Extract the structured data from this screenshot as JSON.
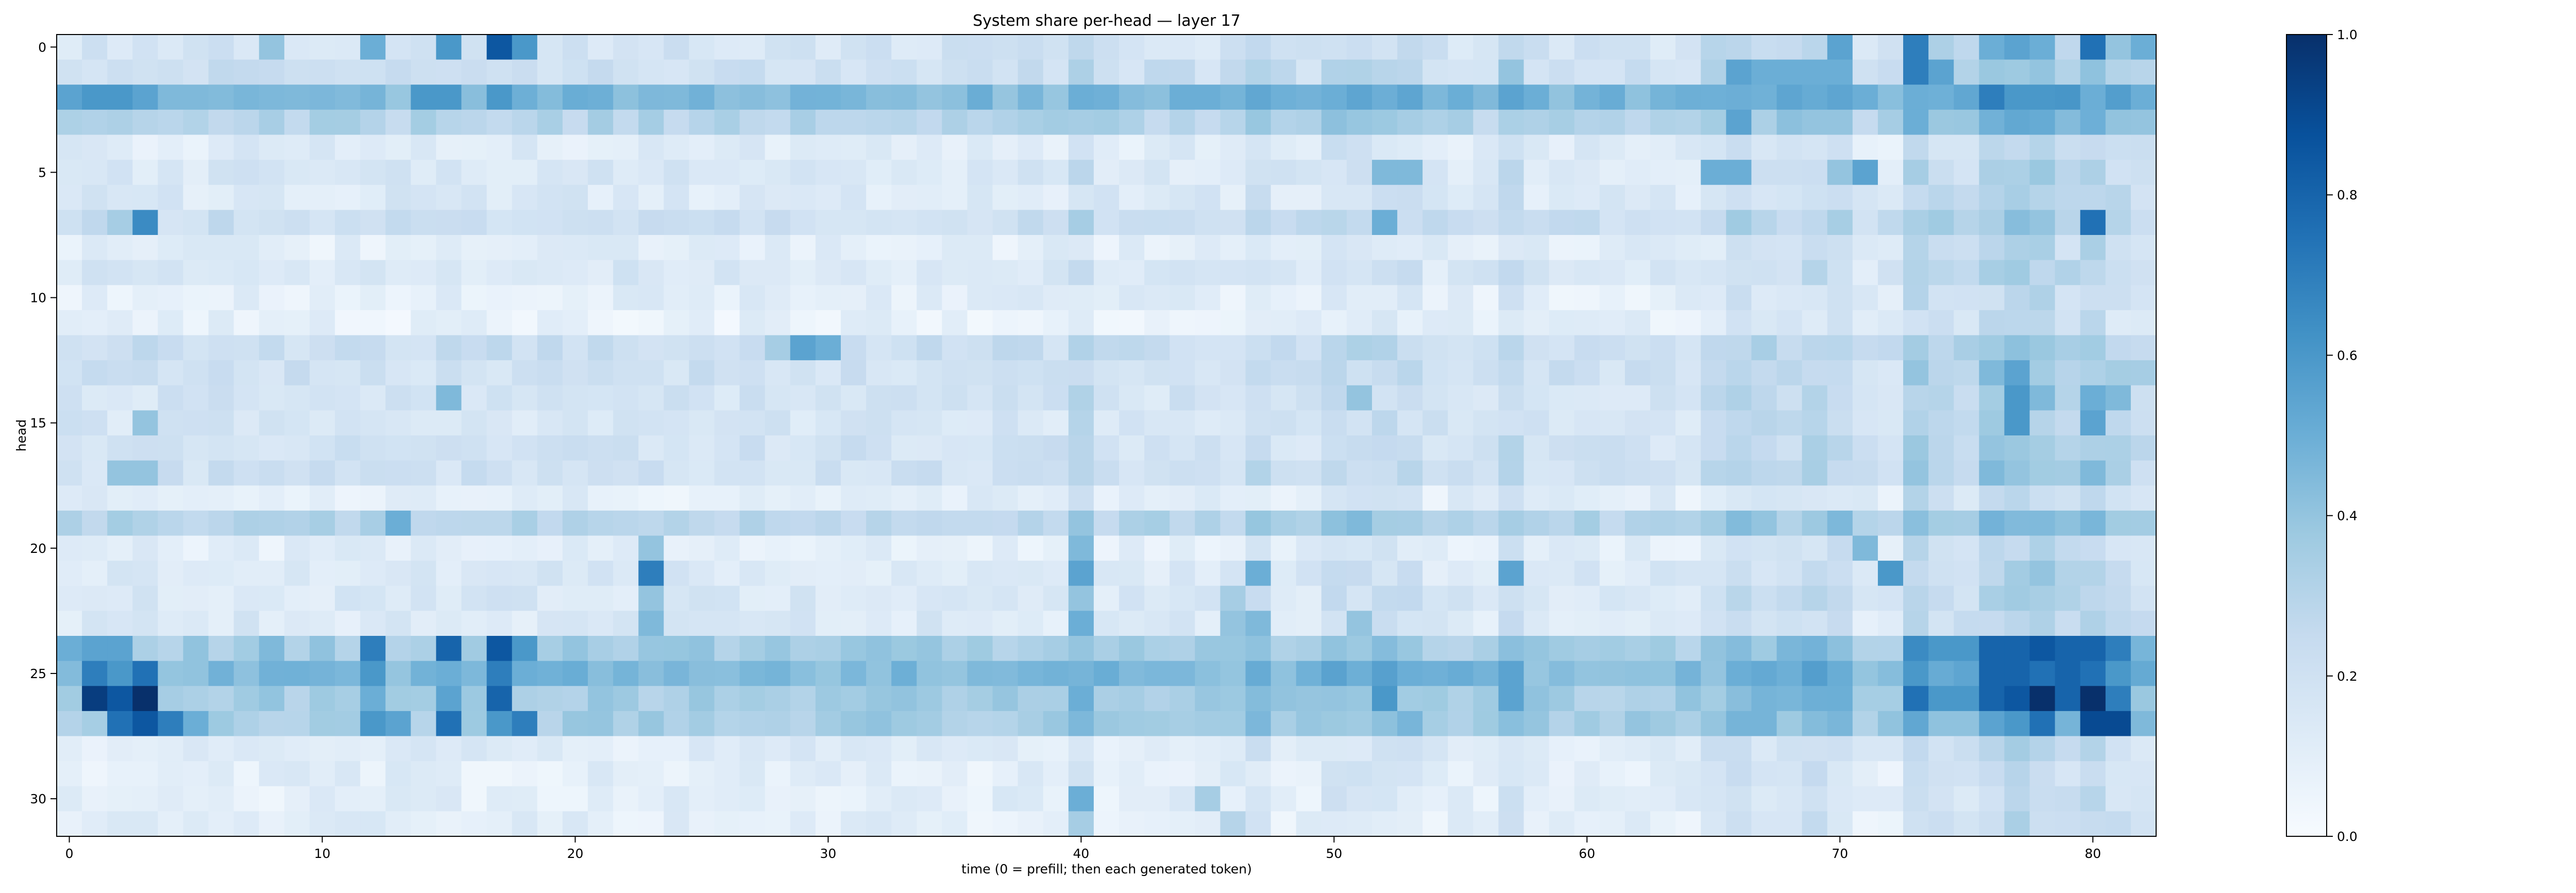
{
  "chart_data": {
    "type": "heatmap",
    "title": "System share per-head — layer 17",
    "xlabel": "time (0 = prefill; then each generated token)",
    "ylabel": "head",
    "n_cols": 83,
    "n_rows": 32,
    "xlim": [
      0,
      82
    ],
    "ylim": [
      0,
      31
    ],
    "x_ticks": [
      0,
      10,
      20,
      30,
      40,
      50,
      60,
      70,
      80
    ],
    "y_ticks": [
      0,
      5,
      10,
      15,
      20,
      25,
      30
    ],
    "colormap": "Blues",
    "color_range": [
      0.0,
      1.0
    ],
    "colorbar_ticks": [
      "0.0",
      "0.2",
      "0.4",
      "0.6",
      "0.8",
      "1.0"
    ],
    "grid": false,
    "legend": "colorbar-right",
    "row_base_values": [
      0.18,
      0.22,
      0.45,
      0.3,
      0.12,
      0.15,
      0.14,
      0.22,
      0.1,
      0.15,
      0.1,
      0.08,
      0.22,
      0.2,
      0.18,
      0.17,
      0.19,
      0.2,
      0.1,
      0.3,
      0.1,
      0.14,
      0.15,
      0.14,
      0.35,
      0.45,
      0.35,
      0.35,
      0.12,
      0.1,
      0.1,
      0.1
    ],
    "column_offsets": [
      {
        "col": 40,
        "delta": 0.08
      },
      {
        "col": 47,
        "delta": 0.06
      },
      {
        "col": 50,
        "delta": 0.06
      },
      {
        "col": 51,
        "delta": 0.06
      },
      {
        "col": 52,
        "delta": 0.06
      },
      {
        "col": 53,
        "delta": 0.06
      },
      {
        "col": 57,
        "delta": 0.08
      },
      {
        "col": 65,
        "delta": 0.06
      },
      {
        "col": 66,
        "delta": 0.1
      },
      {
        "col": 67,
        "delta": 0.08
      },
      {
        "col": 68,
        "delta": 0.06
      },
      {
        "col": 69,
        "delta": 0.1
      },
      {
        "col": 70,
        "delta": 0.1
      },
      {
        "col": 73,
        "delta": 0.15
      },
      {
        "col": 74,
        "delta": 0.1
      },
      {
        "col": 75,
        "delta": 0.08
      },
      {
        "col": 76,
        "delta": 0.15
      },
      {
        "col": 77,
        "delta": 0.18
      },
      {
        "col": 78,
        "delta": 0.18
      },
      {
        "col": 79,
        "delta": 0.12
      },
      {
        "col": 80,
        "delta": 0.18
      },
      {
        "col": 81,
        "delta": 0.1
      },
      {
        "col": 82,
        "delta": 0.06
      }
    ],
    "cells": [
      {
        "row": 0,
        "col": 8,
        "value": 0.4
      },
      {
        "row": 0,
        "col": 12,
        "value": 0.5
      },
      {
        "row": 0,
        "col": 15,
        "value": 0.6
      },
      {
        "row": 0,
        "col": 17,
        "value": 0.85
      },
      {
        "row": 0,
        "col": 18,
        "value": 0.6
      },
      {
        "row": 0,
        "col": 73,
        "value": 0.7
      },
      {
        "row": 0,
        "col": 70,
        "value": 0.55
      },
      {
        "row": 0,
        "col": 76,
        "value": 0.5
      },
      {
        "row": 0,
        "col": 77,
        "value": 0.55
      },
      {
        "row": 0,
        "col": 78,
        "value": 0.5
      },
      {
        "row": 0,
        "col": 80,
        "value": 0.75
      },
      {
        "row": 0,
        "col": 81,
        "value": 0.4
      },
      {
        "row": 0,
        "col": 82,
        "value": 0.5
      },
      {
        "row": 1,
        "col": 66,
        "value": 0.55
      },
      {
        "row": 1,
        "col": 67,
        "value": 0.5
      },
      {
        "row": 1,
        "col": 68,
        "value": 0.5
      },
      {
        "row": 1,
        "col": 69,
        "value": 0.5
      },
      {
        "row": 1,
        "col": 70,
        "value": 0.5
      },
      {
        "row": 1,
        "col": 73,
        "value": 0.7
      },
      {
        "row": 1,
        "col": 74,
        "value": 0.55
      },
      {
        "row": 1,
        "col": 57,
        "value": 0.4
      },
      {
        "row": 2,
        "col": 0,
        "value": 0.55
      },
      {
        "row": 2,
        "col": 1,
        "value": 0.6
      },
      {
        "row": 2,
        "col": 2,
        "value": 0.6
      },
      {
        "row": 2,
        "col": 3,
        "value": 0.55
      },
      {
        "row": 2,
        "col": 4,
        "value": 0.45
      },
      {
        "row": 2,
        "col": 5,
        "value": 0.45
      },
      {
        "row": 2,
        "col": 14,
        "value": 0.6
      },
      {
        "row": 2,
        "col": 15,
        "value": 0.6
      },
      {
        "row": 2,
        "col": 17,
        "value": 0.6
      },
      {
        "row": 2,
        "col": 40,
        "value": 0.5
      },
      {
        "row": 2,
        "col": 44,
        "value": 0.5
      },
      {
        "row": 2,
        "col": 45,
        "value": 0.5
      },
      {
        "row": 2,
        "col": 57,
        "value": 0.55
      },
      {
        "row": 2,
        "col": 73,
        "value": 0.5
      },
      {
        "row": 2,
        "col": 76,
        "value": 0.7
      },
      {
        "row": 2,
        "col": 78,
        "value": 0.6
      },
      {
        "row": 2,
        "col": 80,
        "value": 0.5
      },
      {
        "row": 2,
        "col": 82,
        "value": 0.5
      },
      {
        "row": 3,
        "col": 66,
        "value": 0.55
      },
      {
        "row": 3,
        "col": 69,
        "value": 0.4
      },
      {
        "row": 3,
        "col": 70,
        "value": 0.4
      },
      {
        "row": 3,
        "col": 73,
        "value": 0.5
      },
      {
        "row": 3,
        "col": 82,
        "value": 0.4
      },
      {
        "row": 5,
        "col": 52,
        "value": 0.45
      },
      {
        "row": 5,
        "col": 53,
        "value": 0.45
      },
      {
        "row": 5,
        "col": 65,
        "value": 0.5
      },
      {
        "row": 5,
        "col": 66,
        "value": 0.5
      },
      {
        "row": 5,
        "col": 71,
        "value": 0.55
      },
      {
        "row": 5,
        "col": 70,
        "value": 0.4
      },
      {
        "row": 7,
        "col": 3,
        "value": 0.65
      },
      {
        "row": 7,
        "col": 2,
        "value": 0.35
      },
      {
        "row": 7,
        "col": 52,
        "value": 0.5
      },
      {
        "row": 7,
        "col": 80,
        "value": 0.75
      },
      {
        "row": 7,
        "col": 78,
        "value": 0.4
      },
      {
        "row": 7,
        "col": 40,
        "value": 0.35
      },
      {
        "row": 12,
        "col": 29,
        "value": 0.55
      },
      {
        "row": 12,
        "col": 30,
        "value": 0.5
      },
      {
        "row": 12,
        "col": 28,
        "value": 0.35
      },
      {
        "row": 13,
        "col": 73,
        "value": 0.4
      },
      {
        "row": 13,
        "col": 76,
        "value": 0.45
      },
      {
        "row": 13,
        "col": 77,
        "value": 0.55
      },
      {
        "row": 13,
        "col": 82,
        "value": 0.35
      },
      {
        "row": 14,
        "col": 15,
        "value": 0.45
      },
      {
        "row": 14,
        "col": 51,
        "value": 0.4
      },
      {
        "row": 14,
        "col": 77,
        "value": 0.6
      },
      {
        "row": 14,
        "col": 78,
        "value": 0.45
      },
      {
        "row": 14,
        "col": 80,
        "value": 0.5
      },
      {
        "row": 14,
        "col": 81,
        "value": 0.45
      },
      {
        "row": 15,
        "col": 3,
        "value": 0.4
      },
      {
        "row": 15,
        "col": 77,
        "value": 0.6
      },
      {
        "row": 15,
        "col": 80,
        "value": 0.55
      },
      {
        "row": 16,
        "col": 76,
        "value": 0.4
      },
      {
        "row": 17,
        "col": 2,
        "value": 0.4
      },
      {
        "row": 17,
        "col": 3,
        "value": 0.4
      },
      {
        "row": 17,
        "col": 73,
        "value": 0.4
      },
      {
        "row": 17,
        "col": 76,
        "value": 0.45
      },
      {
        "row": 17,
        "col": 77,
        "value": 0.4
      },
      {
        "row": 17,
        "col": 80,
        "value": 0.45
      },
      {
        "row": 19,
        "col": 13,
        "value": 0.5
      },
      {
        "row": 19,
        "col": 51,
        "value": 0.45
      },
      {
        "row": 19,
        "col": 40,
        "value": 0.4
      },
      {
        "row": 20,
        "col": 23,
        "value": 0.4
      },
      {
        "row": 20,
        "col": 40,
        "value": 0.45
      },
      {
        "row": 20,
        "col": 71,
        "value": 0.45
      },
      {
        "row": 21,
        "col": 23,
        "value": 0.7
      },
      {
        "row": 21,
        "col": 40,
        "value": 0.55
      },
      {
        "row": 21,
        "col": 47,
        "value": 0.5
      },
      {
        "row": 21,
        "col": 57,
        "value": 0.55
      },
      {
        "row": 21,
        "col": 72,
        "value": 0.6
      },
      {
        "row": 21,
        "col": 78,
        "value": 0.4
      },
      {
        "row": 22,
        "col": 23,
        "value": 0.4
      },
      {
        "row": 22,
        "col": 40,
        "value": 0.4
      },
      {
        "row": 22,
        "col": 46,
        "value": 0.35
      },
      {
        "row": 23,
        "col": 23,
        "value": 0.45
      },
      {
        "row": 23,
        "col": 40,
        "value": 0.5
      },
      {
        "row": 23,
        "col": 46,
        "value": 0.4
      },
      {
        "row": 23,
        "col": 47,
        "value": 0.45
      },
      {
        "row": 23,
        "col": 51,
        "value": 0.4
      },
      {
        "row": 24,
        "col": 0,
        "value": 0.5
      },
      {
        "row": 24,
        "col": 1,
        "value": 0.55
      },
      {
        "row": 24,
        "col": 2,
        "value": 0.55
      },
      {
        "row": 24,
        "col": 8,
        "value": 0.45
      },
      {
        "row": 24,
        "col": 12,
        "value": 0.7
      },
      {
        "row": 24,
        "col": 15,
        "value": 0.8
      },
      {
        "row": 24,
        "col": 17,
        "value": 0.85
      },
      {
        "row": 24,
        "col": 18,
        "value": 0.6
      },
      {
        "row": 24,
        "col": 73,
        "value": 0.65
      },
      {
        "row": 24,
        "col": 74,
        "value": 0.6
      },
      {
        "row": 24,
        "col": 75,
        "value": 0.6
      },
      {
        "row": 24,
        "col": 76,
        "value": 0.8
      },
      {
        "row": 24,
        "col": 77,
        "value": 0.8
      },
      {
        "row": 24,
        "col": 78,
        "value": 0.85
      },
      {
        "row": 24,
        "col": 79,
        "value": 0.8
      },
      {
        "row": 24,
        "col": 80,
        "value": 0.8
      },
      {
        "row": 24,
        "col": 81,
        "value": 0.7
      },
      {
        "row": 25,
        "col": 1,
        "value": 0.7
      },
      {
        "row": 25,
        "col": 2,
        "value": 0.6
      },
      {
        "row": 25,
        "col": 3,
        "value": 0.75
      },
      {
        "row": 25,
        "col": 12,
        "value": 0.6
      },
      {
        "row": 25,
        "col": 15,
        "value": 0.5
      },
      {
        "row": 25,
        "col": 17,
        "value": 0.7
      },
      {
        "row": 25,
        "col": 18,
        "value": 0.5
      },
      {
        "row": 25,
        "col": 65,
        "value": 0.4
      },
      {
        "row": 25,
        "col": 66,
        "value": 0.5
      },
      {
        "row": 25,
        "col": 73,
        "value": 0.6
      },
      {
        "row": 25,
        "col": 76,
        "value": 0.8
      },
      {
        "row": 25,
        "col": 77,
        "value": 0.8
      },
      {
        "row": 25,
        "col": 78,
        "value": 0.75
      },
      {
        "row": 25,
        "col": 79,
        "value": 0.8
      },
      {
        "row": 25,
        "col": 80,
        "value": 0.75
      },
      {
        "row": 25,
        "col": 81,
        "value": 0.6
      },
      {
        "row": 26,
        "col": 1,
        "value": 0.95
      },
      {
        "row": 26,
        "col": 2,
        "value": 0.85
      },
      {
        "row": 26,
        "col": 3,
        "value": 1.0
      },
      {
        "row": 26,
        "col": 4,
        "value": 0.35
      },
      {
        "row": 26,
        "col": 12,
        "value": 0.5
      },
      {
        "row": 26,
        "col": 15,
        "value": 0.55
      },
      {
        "row": 26,
        "col": 17,
        "value": 0.8
      },
      {
        "row": 26,
        "col": 40,
        "value": 0.5
      },
      {
        "row": 26,
        "col": 52,
        "value": 0.6
      },
      {
        "row": 26,
        "col": 57,
        "value": 0.55
      },
      {
        "row": 26,
        "col": 73,
        "value": 0.75
      },
      {
        "row": 26,
        "col": 74,
        "value": 0.6
      },
      {
        "row": 26,
        "col": 75,
        "value": 0.6
      },
      {
        "row": 26,
        "col": 76,
        "value": 0.8
      },
      {
        "row": 26,
        "col": 77,
        "value": 0.85
      },
      {
        "row": 26,
        "col": 78,
        "value": 1.0
      },
      {
        "row": 26,
        "col": 79,
        "value": 0.8
      },
      {
        "row": 26,
        "col": 80,
        "value": 1.0
      },
      {
        "row": 26,
        "col": 81,
        "value": 0.7
      },
      {
        "row": 27,
        "col": 2,
        "value": 0.75
      },
      {
        "row": 27,
        "col": 3,
        "value": 0.85
      },
      {
        "row": 27,
        "col": 4,
        "value": 0.7
      },
      {
        "row": 27,
        "col": 5,
        "value": 0.5
      },
      {
        "row": 27,
        "col": 12,
        "value": 0.6
      },
      {
        "row": 27,
        "col": 13,
        "value": 0.55
      },
      {
        "row": 27,
        "col": 15,
        "value": 0.75
      },
      {
        "row": 27,
        "col": 17,
        "value": 0.6
      },
      {
        "row": 27,
        "col": 18,
        "value": 0.7
      },
      {
        "row": 27,
        "col": 76,
        "value": 0.55
      },
      {
        "row": 27,
        "col": 77,
        "value": 0.6
      },
      {
        "row": 27,
        "col": 78,
        "value": 0.75
      },
      {
        "row": 27,
        "col": 80,
        "value": 0.9
      },
      {
        "row": 27,
        "col": 81,
        "value": 0.9
      },
      {
        "row": 30,
        "col": 40,
        "value": 0.5
      },
      {
        "row": 30,
        "col": 45,
        "value": 0.35
      },
      {
        "row": 31,
        "col": 40,
        "value": 0.35
      },
      {
        "row": 31,
        "col": 46,
        "value": 0.3
      }
    ]
  }
}
